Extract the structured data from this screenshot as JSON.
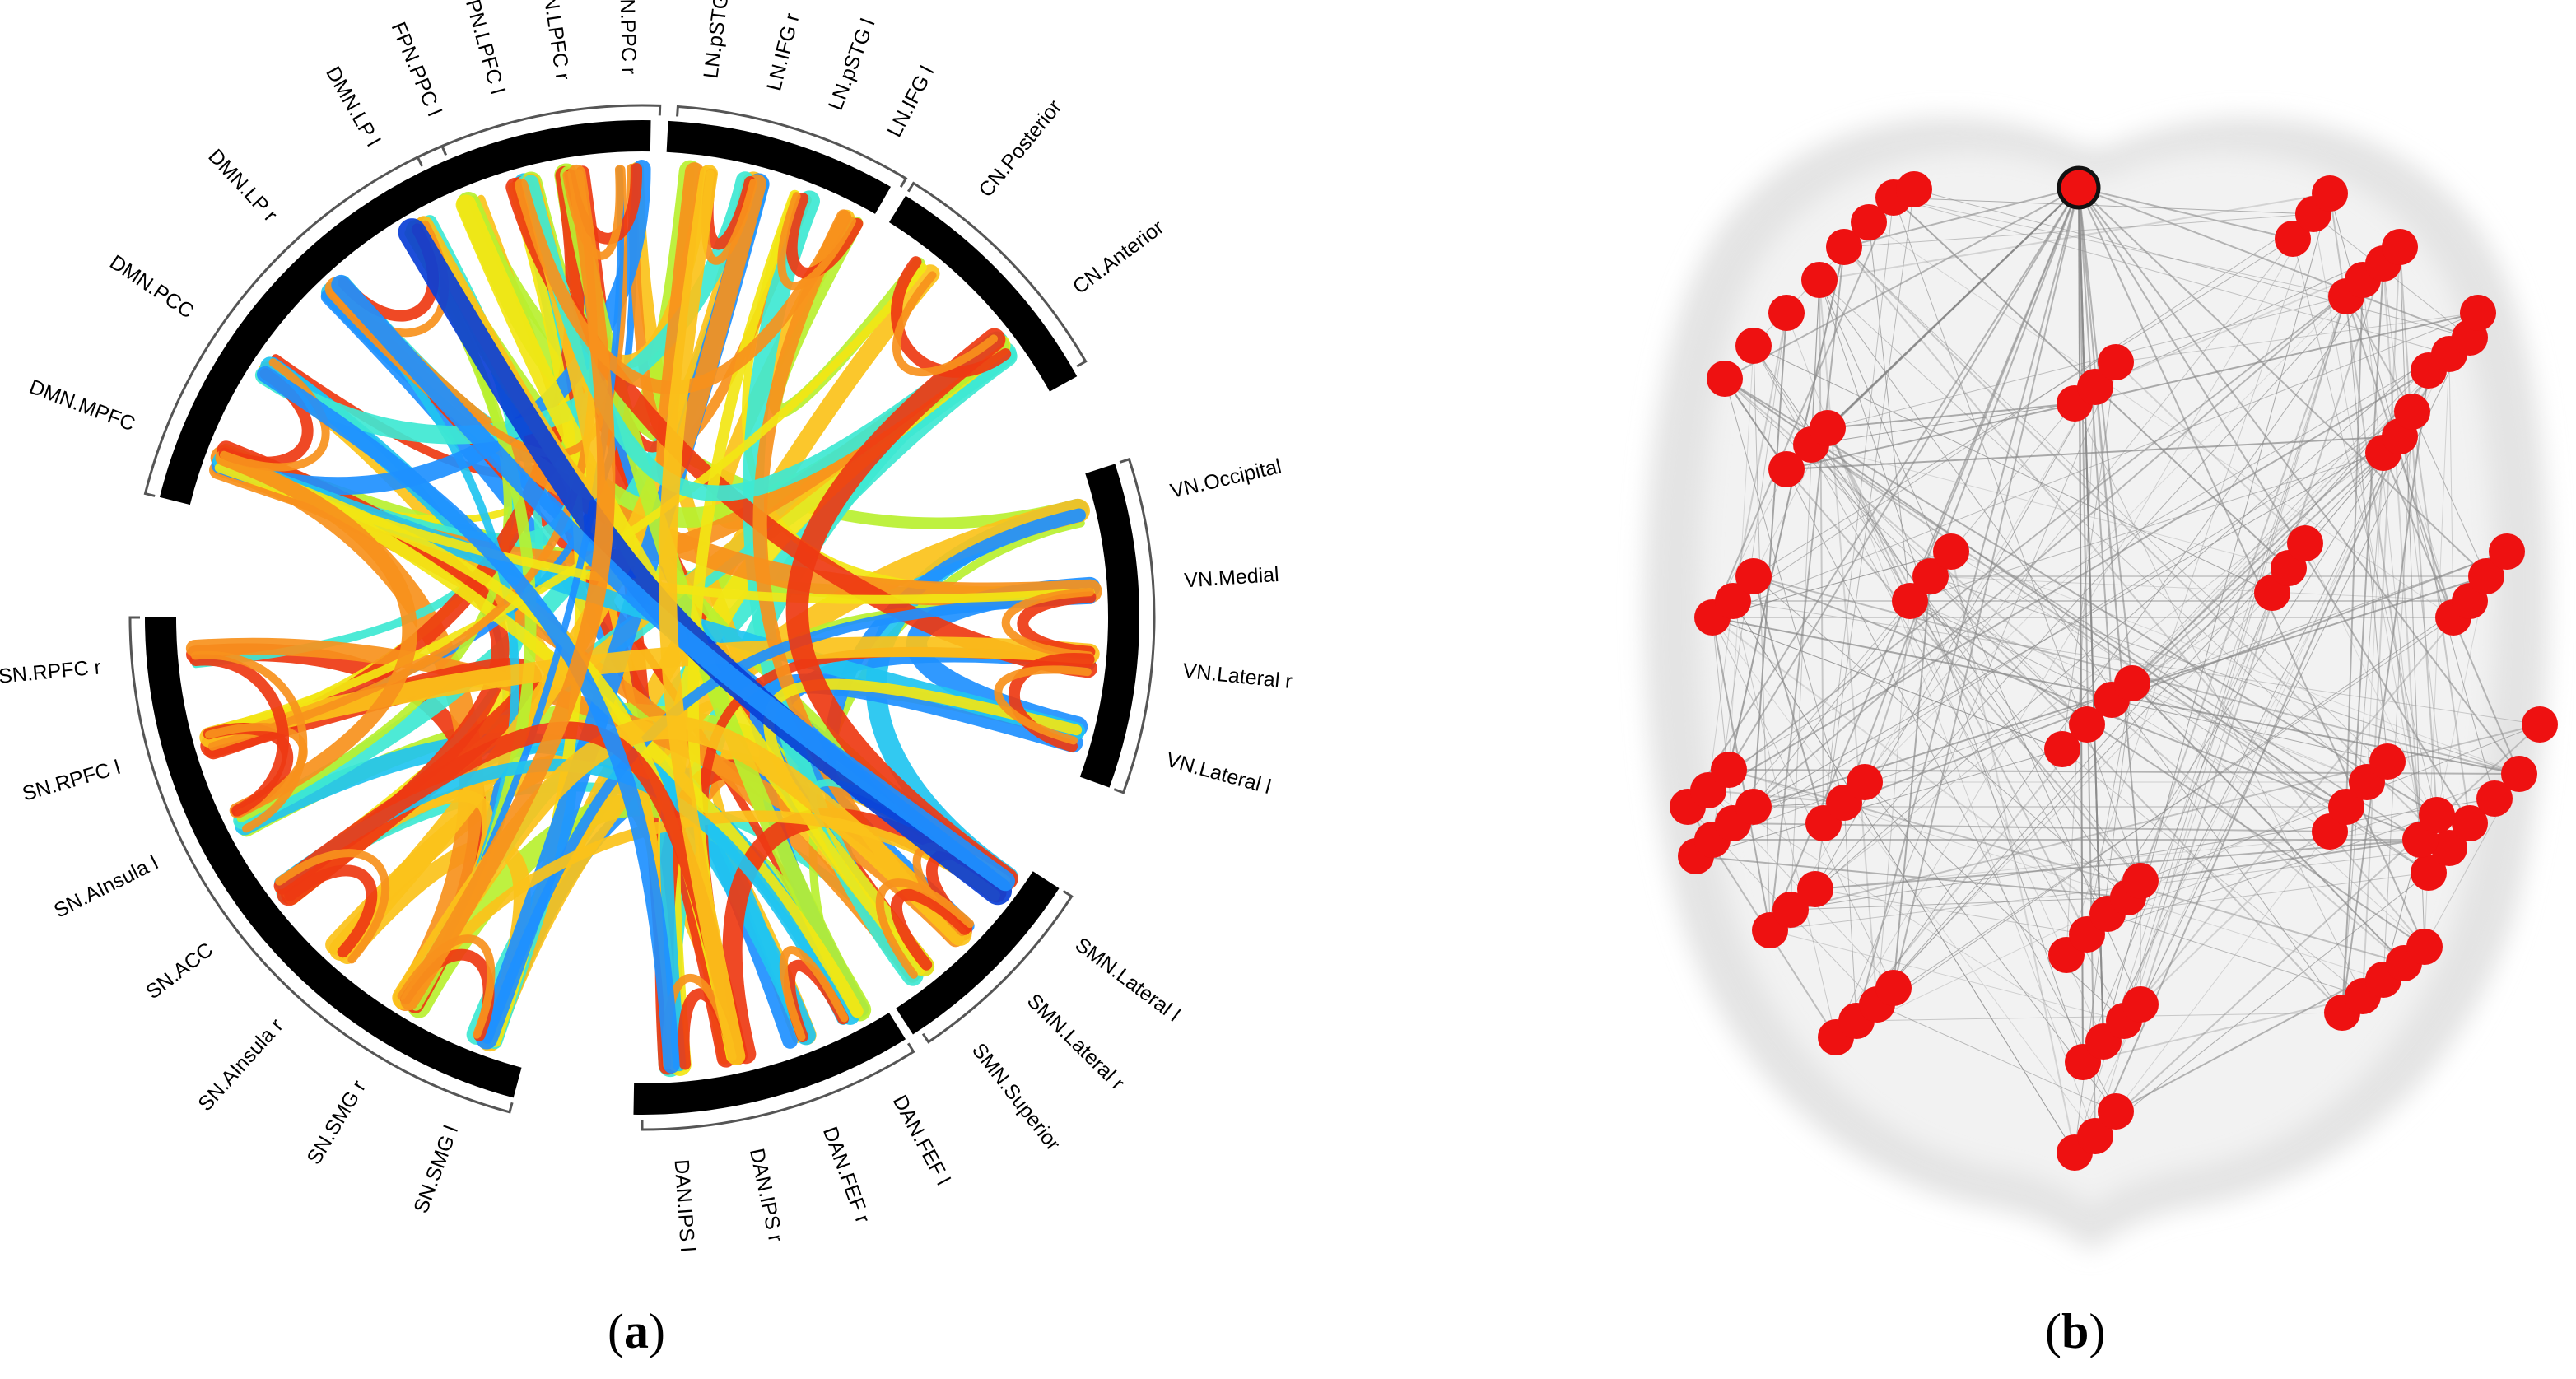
{
  "panel_a": {
    "caption_letter": "a",
    "network_groups": [
      {
        "name": "DMN",
        "nodes": [
          "DMN.LP l",
          "DMN.LP r",
          "DMN.PCC",
          "DMN.MPFC"
        ]
      },
      {
        "name": "SN",
        "nodes": [
          "SN.RPFC r",
          "SN.RPFC l",
          "SN.AInsula l",
          "SN.ACC",
          "SN.AInsula r",
          "SN.SMG r",
          "SN.SMG l"
        ]
      },
      {
        "name": "DAN",
        "nodes": [
          "DAN.IPS l",
          "DAN.IPS r",
          "DAN.FEF r",
          "DAN.FEF l"
        ]
      },
      {
        "name": "SMN",
        "nodes": [
          "SMN.Superior",
          "SMN.Lateral r",
          "SMN.Lateral l"
        ]
      },
      {
        "name": "VN",
        "nodes": [
          "VN.Lateral l",
          "VN.Lateral r",
          "VN.Medial",
          "VN.Occipital"
        ]
      },
      {
        "name": "CN",
        "nodes": [
          "CN.Anterior",
          "CN.Posterior"
        ]
      },
      {
        "name": "LN",
        "nodes": [
          "LN.IFG l",
          "LN.pSTG l",
          "LN.IFG r",
          "LN.pSTG r"
        ]
      },
      {
        "name": "FPN",
        "nodes": [
          "FPN.PPC r",
          "FPN.LPFC r",
          "FPN.LPFC l",
          "FPN.PPC l"
        ]
      }
    ],
    "colors": {
      "segment": "#000000",
      "bracket": "#555555",
      "ribbon_palette": [
        "#0a3fd6",
        "#1e90ff",
        "#21c4f0",
        "#3ee8d2",
        "#b8f030",
        "#f2e614",
        "#fbc21a",
        "#f7911c",
        "#ee3a12",
        "#a80d0d"
      ]
    }
  },
  "panel_b": {
    "caption_letter": "b",
    "colors": {
      "node": "#ee1111",
      "node_outline": "#111111",
      "edge": "#8a8a8a",
      "brain_outer": "#e4e4e4",
      "brain_inner": "#f2f2f2"
    }
  }
}
